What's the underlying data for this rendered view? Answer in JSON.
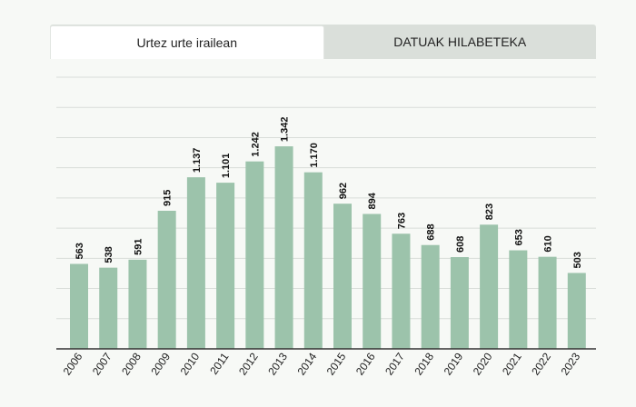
{
  "tabs": [
    {
      "label": "Urtez urte irailean",
      "active": true
    },
    {
      "label": "DATUAK HILABETEKA",
      "active": false
    }
  ],
  "colors": {
    "bar": "#9cc3ab",
    "grid": "#d9ddd9",
    "axis": "#333333"
  },
  "chart_data": {
    "type": "bar",
    "categories": [
      "2006",
      "2007",
      "2008",
      "2009",
      "2010",
      "2011",
      "2012",
      "2013",
      "2014",
      "2015",
      "2016",
      "2017",
      "2018",
      "2019",
      "2020",
      "2021",
      "2022",
      "2023"
    ],
    "values": [
      563,
      538,
      591,
      915,
      1137,
      1101,
      1242,
      1342,
      1170,
      962,
      894,
      763,
      688,
      608,
      823,
      653,
      610,
      503
    ],
    "value_labels": [
      "563",
      "538",
      "591",
      "915",
      "1.137",
      "1.101",
      "1.242",
      "1.342",
      "1.170",
      "962",
      "894",
      "763",
      "688",
      "608",
      "823",
      "653",
      "610",
      "503"
    ],
    "title": "",
    "xlabel": "",
    "ylabel": "",
    "ylim": [
      0,
      1800
    ],
    "grid": true,
    "legend": "none"
  }
}
